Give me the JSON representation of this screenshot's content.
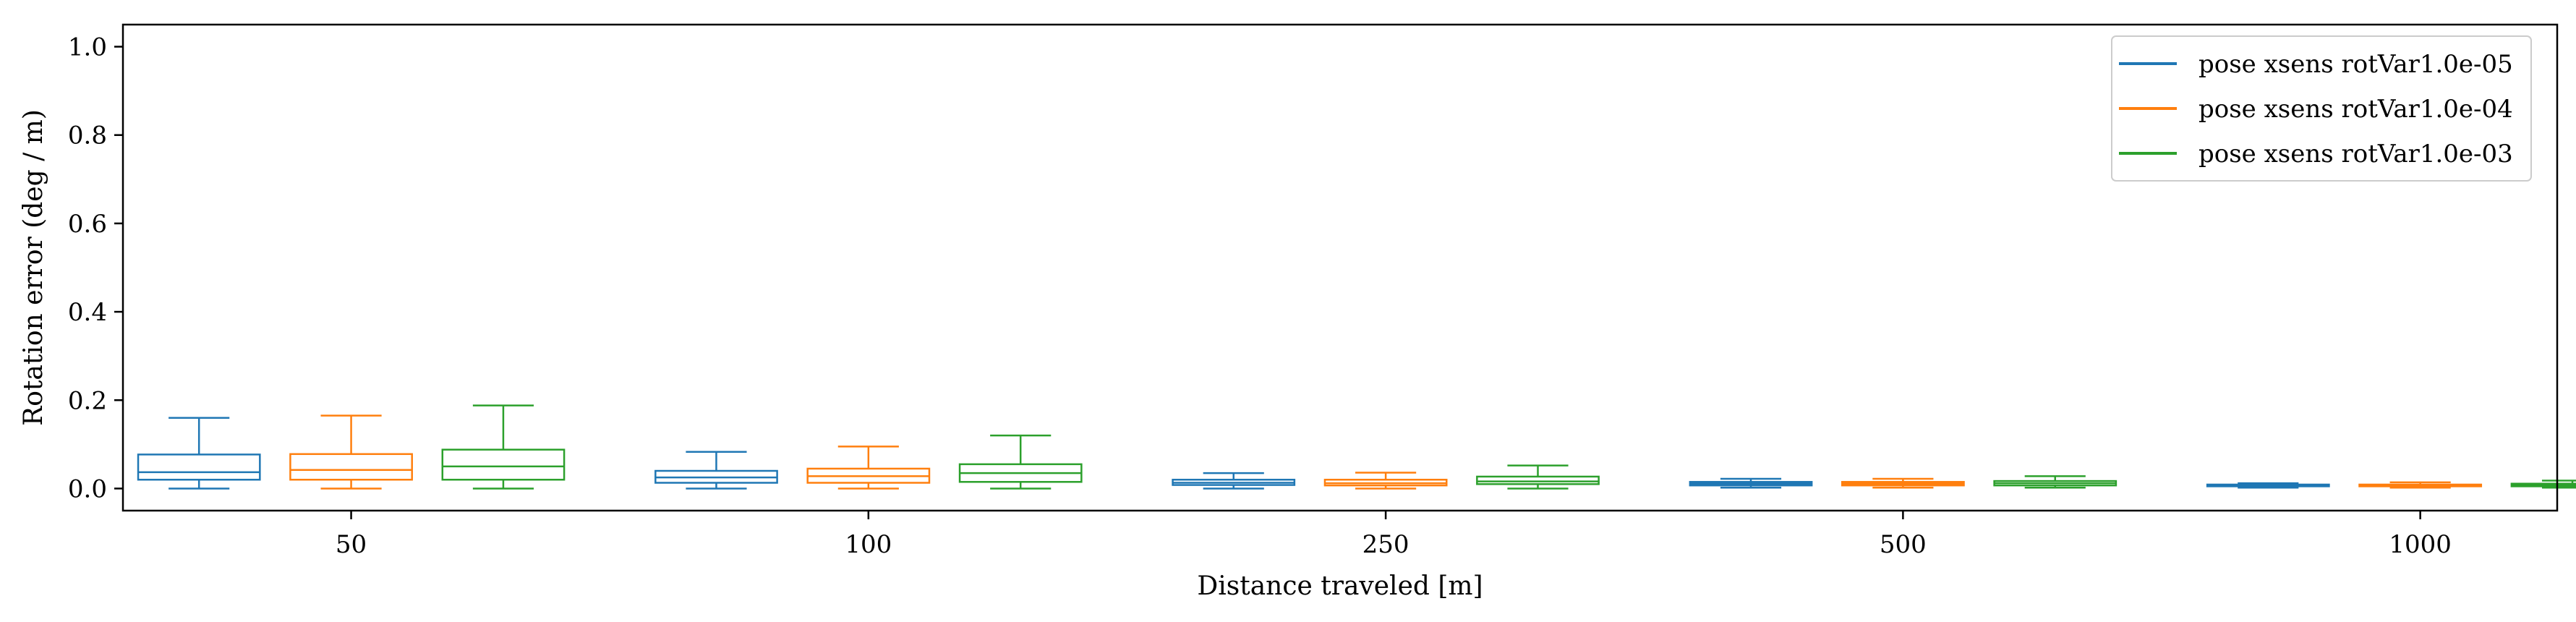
{
  "chart_data": {
    "type": "boxplot",
    "xlabel": "Distance traveled [m]",
    "ylabel": "Rotation error (deg / m)",
    "ylim": [
      -0.05,
      1.05
    ],
    "yticks": [
      0.0,
      0.2,
      0.4,
      0.6,
      0.8,
      1.0
    ],
    "ytick_labels": [
      "0.0",
      "0.2",
      "0.4",
      "0.6",
      "0.8",
      "1.0"
    ],
    "categories": [
      "50",
      "100",
      "250",
      "500",
      "1000"
    ],
    "legend_position": "top-right",
    "grid": false,
    "series": [
      {
        "name": "pose xsens rotVar1.0e-05",
        "color": "#1f77b4",
        "boxes": [
          {
            "whislo": 0.0,
            "q1": 0.02,
            "med": 0.037,
            "q3": 0.077,
            "whishi": 0.16
          },
          {
            "whislo": 0.0,
            "q1": 0.013,
            "med": 0.025,
            "q3": 0.04,
            "whishi": 0.083
          },
          {
            "whislo": 0.0,
            "q1": 0.008,
            "med": 0.013,
            "q3": 0.02,
            "whishi": 0.035
          },
          {
            "whislo": 0.002,
            "q1": 0.007,
            "med": 0.011,
            "q3": 0.015,
            "whishi": 0.022
          },
          {
            "whislo": 0.002,
            "q1": 0.005,
            "med": 0.007,
            "q3": 0.009,
            "whishi": 0.012
          }
        ]
      },
      {
        "name": "pose xsens rotVar1.0e-04",
        "color": "#ff7f0e",
        "boxes": [
          {
            "whislo": 0.0,
            "q1": 0.02,
            "med": 0.042,
            "q3": 0.078,
            "whishi": 0.165
          },
          {
            "whislo": 0.0,
            "q1": 0.013,
            "med": 0.028,
            "q3": 0.045,
            "whishi": 0.095
          },
          {
            "whislo": 0.0,
            "q1": 0.007,
            "med": 0.012,
            "q3": 0.02,
            "whishi": 0.036
          },
          {
            "whislo": 0.002,
            "q1": 0.007,
            "med": 0.011,
            "q3": 0.015,
            "whishi": 0.022
          },
          {
            "whislo": 0.002,
            "q1": 0.005,
            "med": 0.007,
            "q3": 0.009,
            "whishi": 0.014
          }
        ]
      },
      {
        "name": "pose xsens rotVar1.0e-03",
        "color": "#2ca02c",
        "boxes": [
          {
            "whislo": 0.0,
            "q1": 0.02,
            "med": 0.05,
            "q3": 0.088,
            "whishi": 0.188
          },
          {
            "whislo": 0.0,
            "q1": 0.015,
            "med": 0.035,
            "q3": 0.055,
            "whishi": 0.12
          },
          {
            "whislo": 0.0,
            "q1": 0.01,
            "med": 0.016,
            "q3": 0.027,
            "whishi": 0.052
          },
          {
            "whislo": 0.002,
            "q1": 0.007,
            "med": 0.012,
            "q3": 0.017,
            "whishi": 0.028
          },
          {
            "whislo": 0.002,
            "q1": 0.005,
            "med": 0.008,
            "q3": 0.011,
            "whishi": 0.018
          }
        ]
      }
    ]
  }
}
